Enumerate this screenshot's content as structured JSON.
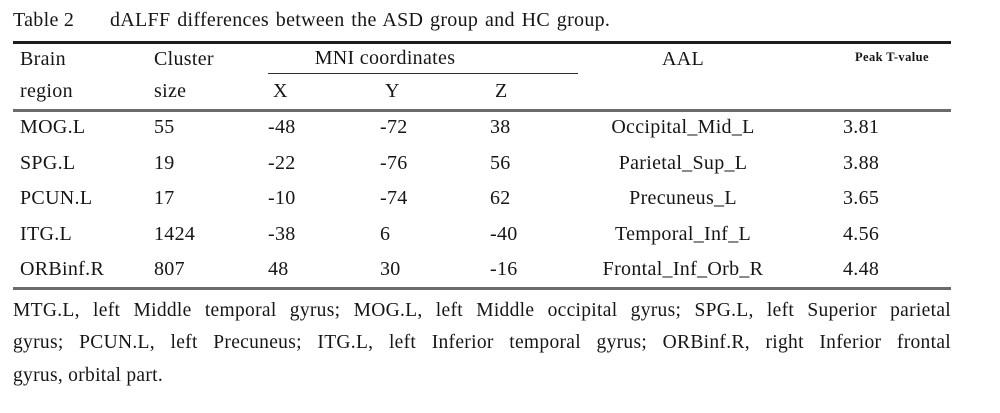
{
  "title": {
    "label": "Table 2",
    "caption": "dALFF differences between the ASD group and HC group."
  },
  "table": {
    "headers": {
      "brain_region_line1": "Brain",
      "brain_region_line2": "region",
      "cluster_line1": "Cluster",
      "cluster_line2": "size",
      "mni_group": "MNI coordinates",
      "x": "X",
      "y": "Y",
      "z": "Z",
      "aal": "AAL",
      "peak_t": "Peak T-value"
    },
    "rows": [
      {
        "region": "MOG.L",
        "cluster_size": "55",
        "x": "-48",
        "y": "-72",
        "z": "38",
        "aal": "Occipital_Mid_L",
        "peak_t": "3.81"
      },
      {
        "region": "SPG.L",
        "cluster_size": "19",
        "x": "-22",
        "y": "-76",
        "z": "56",
        "aal": "Parietal_Sup_L",
        "peak_t": "3.88"
      },
      {
        "region": "PCUN.L",
        "cluster_size": "17",
        "x": "-10",
        "y": "-74",
        "z": "62",
        "aal": "Precuneus_L",
        "peak_t": "3.65"
      },
      {
        "region": "ITG.L",
        "cluster_size": "1424",
        "x": "-38",
        "y": "6",
        "z": "-40",
        "aal": "Temporal_Inf_L",
        "peak_t": "4.56"
      },
      {
        "region": "ORBinf.R",
        "cluster_size": "807",
        "x": "48",
        "y": "30",
        "z": "-16",
        "aal": "Frontal_Inf_Orb_R",
        "peak_t": "4.48"
      }
    ]
  },
  "footnote": {
    "lines": [
      "MTG.L, left Middle temporal gyrus; MOG.L, left Middle occipital gyrus; SPG.L, left Superior parietal",
      "gyrus; PCUN.L, left Precuneus; ITG.L, left Inferior temporal gyrus; ORBinf.R, right Inferior frontal",
      "gyrus, orbital part."
    ]
  },
  "colors": {
    "text": "#161616",
    "rule_top": "#1c1c1c",
    "rule_gray": "#6b6b6b",
    "background": "#ffffff"
  }
}
